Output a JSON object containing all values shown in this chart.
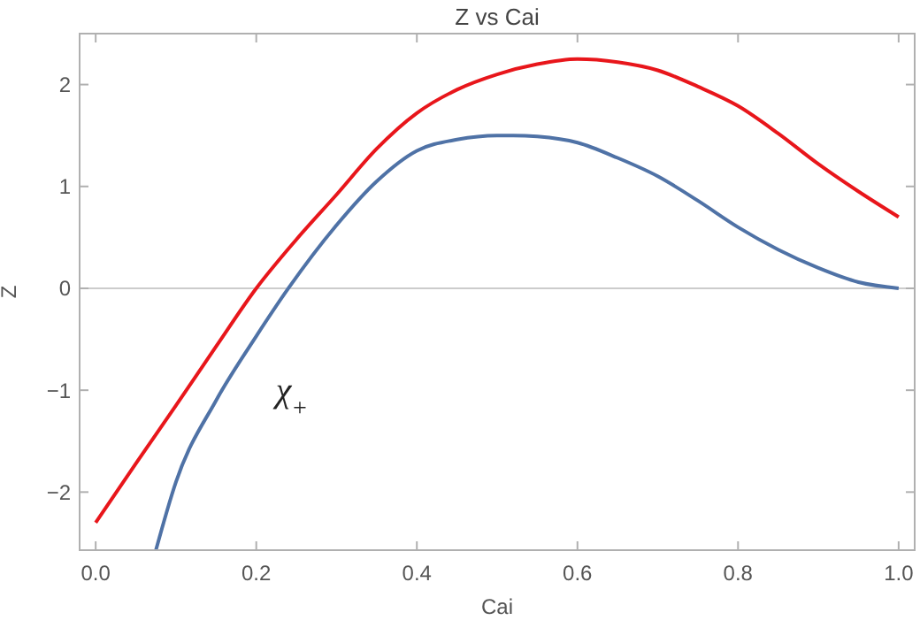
{
  "chart_data": {
    "type": "line",
    "title": "Z vs Cai",
    "xlabel": "Cai",
    "ylabel": "Z",
    "xlim": [
      -0.02,
      1.02
    ],
    "ylim": [
      -2.57,
      2.5
    ],
    "xticks": [
      {
        "value": 0,
        "label": "0.0"
      },
      0.2,
      0.4,
      0.6,
      0.8,
      {
        "value": 1,
        "label": "1.0"
      }
    ],
    "yticks": [
      -2,
      -1,
      0,
      1,
      2
    ],
    "ref_lines": [
      {
        "axis": "y",
        "value": 0,
        "color": "#cccccc"
      }
    ],
    "annotations": [
      "χ$_{+}$"
    ],
    "series": [
      {
        "color": "#e8161b",
        "x": [
          0,
          0.05,
          0.1,
          0.15,
          0.2,
          0.25,
          0.3,
          0.35,
          0.4,
          0.45,
          0.5,
          0.55,
          0.6,
          0.65,
          0.7,
          0.75,
          0.8,
          0.85,
          0.9,
          0.95,
          1.0
        ],
        "values": [
          -2.3,
          -1.72,
          -1.15,
          -0.57,
          0,
          0.48,
          0.92,
          1.37,
          1.72,
          1.95,
          2.1,
          2.2,
          2.25,
          2.22,
          2.14,
          1.98,
          1.79,
          1.52,
          1.22,
          0.95,
          0.7
        ]
      },
      {
        "color": "#4f72a6",
        "x": [
          0.075,
          0.1,
          0.15,
          0.2,
          0.24,
          0.3,
          0.35,
          0.4,
          0.45,
          0.5,
          0.52,
          0.55,
          0.6,
          0.65,
          0.7,
          0.75,
          0.8,
          0.85,
          0.9,
          0.95,
          1.0
        ],
        "values": [
          -2.57,
          -1.9,
          -1.1,
          -0.47,
          0,
          0.62,
          1.05,
          1.35,
          1.46,
          1.5,
          1.5,
          1.49,
          1.43,
          1.28,
          1.1,
          0.86,
          0.6,
          0.38,
          0.2,
          0.06,
          0
        ]
      }
    ]
  }
}
